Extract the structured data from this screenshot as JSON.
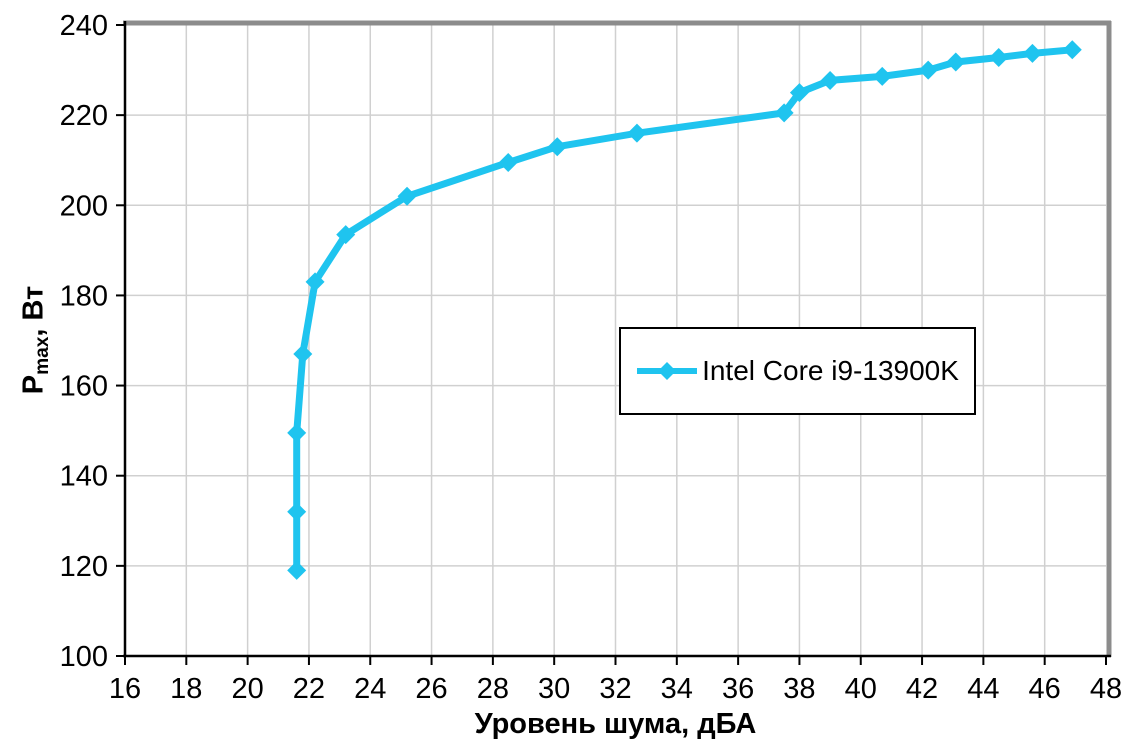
{
  "chart_data": {
    "type": "line",
    "title": "",
    "xlabel": "Уровень шума, дБА",
    "ylabel": "Pmax, Вт",
    "ylabel_parts": {
      "main": "P",
      "sub": "max",
      "unit": ", Вт"
    },
    "xlim": [
      16,
      48
    ],
    "ylim": [
      100,
      240
    ],
    "x_ticks": [
      16,
      18,
      20,
      22,
      24,
      26,
      28,
      30,
      32,
      34,
      36,
      38,
      40,
      42,
      44,
      46,
      48
    ],
    "y_ticks": [
      100,
      120,
      140,
      160,
      180,
      200,
      220,
      240
    ],
    "grid": true,
    "legend": {
      "position": "inside-center-right",
      "bordered": true,
      "entries": [
        "Intel Core i9-13900K"
      ]
    },
    "series": [
      {
        "name": "Intel Core i9-13900K",
        "color": "#1FC4EF",
        "marker": "diamond",
        "points": [
          [
            21.6,
            119
          ],
          [
            21.6,
            132
          ],
          [
            21.6,
            149.5
          ],
          [
            21.8,
            167
          ],
          [
            22.2,
            183
          ],
          [
            23.2,
            193.5
          ],
          [
            25.2,
            202
          ],
          [
            28.5,
            209.5
          ],
          [
            30.1,
            213
          ],
          [
            32.7,
            216
          ],
          [
            37.5,
            220.5
          ],
          [
            38.0,
            225
          ],
          [
            39.0,
            227.7
          ],
          [
            40.7,
            228.6
          ],
          [
            42.2,
            230
          ],
          [
            43.1,
            231.8
          ],
          [
            44.5,
            232.8
          ],
          [
            45.6,
            233.7
          ],
          [
            46.9,
            234.5
          ]
        ]
      }
    ],
    "colors": {
      "line": "#1FC4EF",
      "grid": "#D0D0D0",
      "axis": "#000000",
      "frame": "#8C8C8C",
      "background": "#FFFFFF"
    }
  }
}
